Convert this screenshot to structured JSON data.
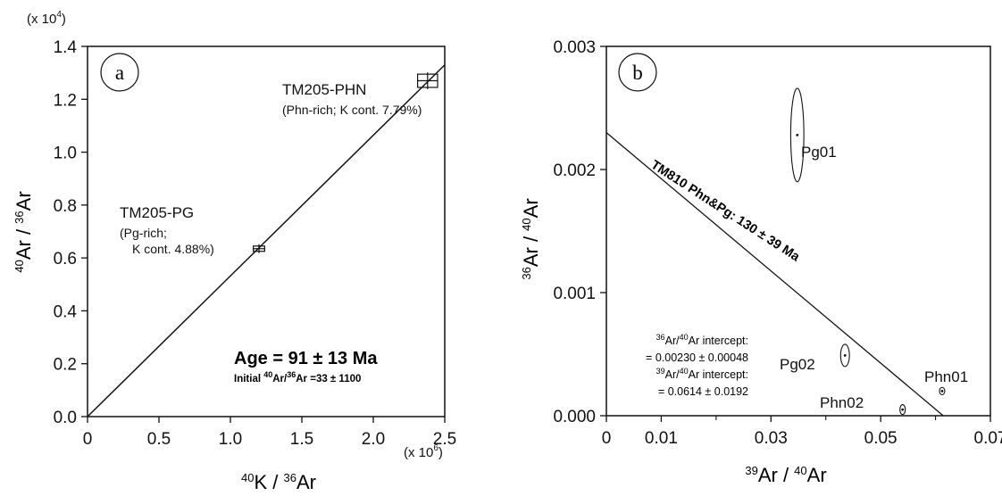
{
  "chart_data": [
    {
      "panel": "a",
      "type": "scatter",
      "x_multiplier": "(x 10",
      "x_multiplier_exp": "6",
      "y_multiplier": "(x 10",
      "y_multiplier_exp": "4",
      "xlim": [
        0,
        2.5
      ],
      "ylim": [
        0,
        1.4
      ],
      "xticks": [
        "0",
        "0.5",
        "1.0",
        "1.5",
        "2.0",
        "2.5"
      ],
      "yticks": [
        "0.0",
        "0.2",
        "0.4",
        "0.6",
        "0.8",
        "1.0",
        "1.2",
        "1.4"
      ],
      "xlabel": {
        "sup1": "40",
        "t1": "K / ",
        "sup2": "36",
        "t2": "Ar"
      },
      "ylabel": {
        "sup1": "40",
        "t1": "Ar / ",
        "sup2": "36",
        "t2": "Ar"
      },
      "points": [
        {
          "x": 1.2,
          "y": 0.635,
          "xerr": 0.04,
          "yerr": 0.01,
          "label": "TM205-PG",
          "sub1": "(Pg-rich;",
          "sub2": "K cont. 4.88%)"
        },
        {
          "x": 2.38,
          "y": 1.27,
          "xerr": 0.07,
          "yerr": 0.025,
          "label": "TM205-PHN",
          "sub1": "(Phn-rich; K cont. 7.79%)"
        }
      ],
      "fit_line": {
        "x0": 0,
        "y0": 0,
        "x1": 2.5,
        "y1": 1.33
      },
      "annotation": {
        "title": "Age = 91 ± 13 Ma",
        "initial_prefix": "Initial ",
        "initial_sup1": "40",
        "initial_mid": "Ar/",
        "initial_sup2": "36",
        "initial_suffix": "Ar =33 ± 1100"
      }
    },
    {
      "panel": "b",
      "type": "scatter",
      "xlim": [
        0,
        0.07
      ],
      "ylim": [
        0,
        0.003
      ],
      "xticks": [
        "0",
        "0.01",
        "0.03",
        "0.05",
        "0.07"
      ],
      "xtick_values": [
        0,
        0.01,
        0.03,
        0.05,
        0.07
      ],
      "yticks": [
        "0.000",
        "0.001",
        "0.002",
        "0.003"
      ],
      "xlabel": {
        "sup1": "39",
        "t1": "Ar / ",
        "sup2": "40",
        "t2": "Ar"
      },
      "ylabel": {
        "sup1": "36",
        "t1": "Ar / ",
        "sup2": "40",
        "t2": "Ar"
      },
      "points": [
        {
          "x": 0.0348,
          "y": 0.00228,
          "rx": 0.0012,
          "ry": 0.00038,
          "label": "Pg01"
        },
        {
          "x": 0.0435,
          "y": 0.00049,
          "rx": 0.0008,
          "ry": 9e-05,
          "label": "Pg02"
        },
        {
          "x": 0.0612,
          "y": 0.0002,
          "rx": 0.0002,
          "ry": 3e-05,
          "label": "Phn01"
        },
        {
          "x": 0.054,
          "y": 5e-05,
          "rx": 0.0002,
          "ry": 4e-05,
          "label": "Phn02"
        }
      ],
      "fit_line": {
        "x0": 0,
        "y0": 0.0023,
        "x1": 0.0614,
        "y1": 0
      },
      "line_label": "TM810 Phn&Pg: 130 ± 39 Ma",
      "intercepts": {
        "i1_sup1": "36",
        "i1_mid": "Ar/",
        "i1_sup2": "40",
        "i1_suffix": "Ar intercept:",
        "i1_value": "= 0.00230 ± 0.00048",
        "i2_sup1": "39",
        "i2_mid": "Ar/",
        "i2_sup2": "40",
        "i2_suffix": "Ar intercept:",
        "i2_value": "= 0.0614 ± 0.0192"
      }
    }
  ]
}
